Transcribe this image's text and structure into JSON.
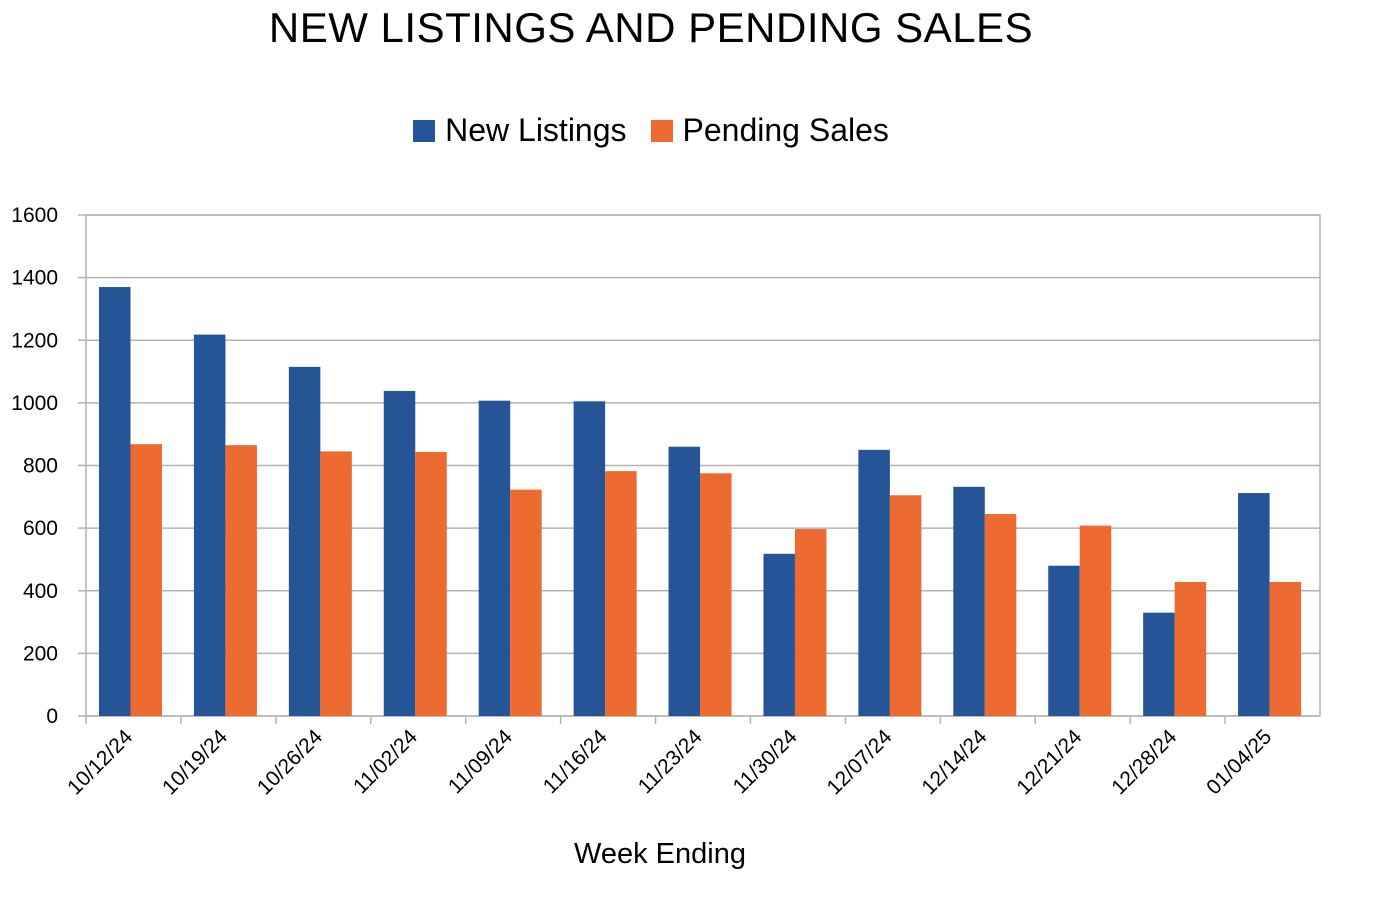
{
  "chart_data": {
    "type": "bar",
    "title": "NEW LISTINGS AND PENDING SALES",
    "xlabel": "Week Ending",
    "ylabel": "",
    "ylim": [
      0,
      1600
    ],
    "yticks": [
      0,
      200,
      400,
      600,
      800,
      1000,
      1200,
      1400,
      1600
    ],
    "grid": true,
    "legend_position": "top-center",
    "categories": [
      "10/12/24",
      "10/19/24",
      "10/26/24",
      "11/02/24",
      "11/09/24",
      "11/16/24",
      "11/23/24",
      "11/30/24",
      "12/07/24",
      "12/14/24",
      "12/21/24",
      "12/28/24",
      "01/04/25"
    ],
    "series": [
      {
        "name": "New Listings",
        "color": "#255596",
        "values": [
          1370,
          1218,
          1115,
          1038,
          1007,
          1005,
          860,
          518,
          850,
          732,
          480,
          330,
          712
        ]
      },
      {
        "name": "Pending Sales",
        "color": "#ED6A31",
        "values": [
          868,
          865,
          845,
          843,
          723,
          782,
          775,
          597,
          705,
          645,
          608,
          428,
          428
        ]
      }
    ]
  }
}
